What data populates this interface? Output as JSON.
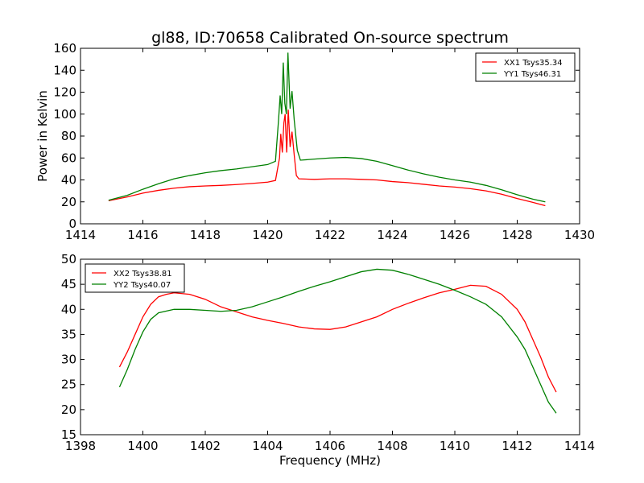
{
  "chart_data": [
    {
      "type": "line",
      "title": "gl88, ID:70658 Calibrated On-source spectrum",
      "xlabel": "",
      "ylabel": "Power in Kelvin",
      "xlim": [
        1414,
        1430
      ],
      "ylim": [
        0,
        160
      ],
      "xticks": [
        1414,
        1416,
        1418,
        1420,
        1422,
        1424,
        1426,
        1428,
        1430
      ],
      "yticks": [
        0,
        20,
        40,
        60,
        80,
        100,
        120,
        140,
        160
      ],
      "legend_position": "top-right",
      "grid": false,
      "series": [
        {
          "name": "XX1 Tsys35.34",
          "color": "#ff0000",
          "points": [
            [
              1414.9,
              21
            ],
            [
              1415.5,
              24.5
            ],
            [
              1416,
              28
            ],
            [
              1416.5,
              30.5
            ],
            [
              1417,
              32.5
            ],
            [
              1417.5,
              33.8
            ],
            [
              1418,
              34.5
            ],
            [
              1418.5,
              35
            ],
            [
              1419,
              35.8
            ],
            [
              1419.5,
              36.8
            ],
            [
              1420.0,
              38
            ],
            [
              1420.25,
              39.5
            ],
            [
              1420.38,
              60
            ],
            [
              1420.42,
              82
            ],
            [
              1420.47,
              65
            ],
            [
              1420.52,
              92
            ],
            [
              1420.56,
              100
            ],
            [
              1420.61,
              65
            ],
            [
              1420.66,
              104
            ],
            [
              1420.72,
              70
            ],
            [
              1420.78,
              84
            ],
            [
              1420.85,
              63
            ],
            [
              1420.92,
              44
            ],
            [
              1421.0,
              41
            ],
            [
              1421.5,
              40.5
            ],
            [
              1422,
              41
            ],
            [
              1422.5,
              41
            ],
            [
              1423,
              40.5
            ],
            [
              1423.5,
              40
            ],
            [
              1424,
              38.5
            ],
            [
              1424.5,
              37.5
            ],
            [
              1425,
              36
            ],
            [
              1425.5,
              34.5
            ],
            [
              1426,
              33.5
            ],
            [
              1426.5,
              32
            ],
            [
              1427,
              30
            ],
            [
              1427.5,
              27
            ],
            [
              1428,
              23
            ],
            [
              1428.5,
              19.5
            ],
            [
              1428.9,
              16.5
            ]
          ]
        },
        {
          "name": "YY1 Tsys46.31",
          "color": "#008000",
          "points": [
            [
              1414.9,
              21.5
            ],
            [
              1415.5,
              26
            ],
            [
              1416,
              31.5
            ],
            [
              1416.5,
              36.5
            ],
            [
              1417,
              41
            ],
            [
              1417.5,
              44
            ],
            [
              1418,
              46.5
            ],
            [
              1418.5,
              48.5
            ],
            [
              1419,
              50
            ],
            [
              1419.5,
              52
            ],
            [
              1420.0,
              54
            ],
            [
              1420.25,
              57
            ],
            [
              1420.35,
              95
            ],
            [
              1420.4,
              117
            ],
            [
              1420.45,
              100
            ],
            [
              1420.5,
              147
            ],
            [
              1420.55,
              110
            ],
            [
              1420.6,
              100
            ],
            [
              1420.65,
              156
            ],
            [
              1420.72,
              105
            ],
            [
              1420.78,
              121
            ],
            [
              1420.85,
              95
            ],
            [
              1420.95,
              67
            ],
            [
              1421.05,
              58
            ],
            [
              1421.5,
              59
            ],
            [
              1422,
              60
            ],
            [
              1422.5,
              60.5
            ],
            [
              1423,
              59.5
            ],
            [
              1423.5,
              57
            ],
            [
              1424,
              53
            ],
            [
              1424.5,
              49
            ],
            [
              1425,
              45.5
            ],
            [
              1425.5,
              42.5
            ],
            [
              1426,
              40
            ],
            [
              1426.5,
              38
            ],
            [
              1427,
              35
            ],
            [
              1427.5,
              31
            ],
            [
              1428,
              26.5
            ],
            [
              1428.5,
              22.5
            ],
            [
              1428.9,
              20
            ]
          ]
        }
      ]
    },
    {
      "type": "line",
      "title": "",
      "xlabel": "Frequency (MHz)",
      "ylabel": "",
      "xlim": [
        1398,
        1414
      ],
      "ylim": [
        15,
        50
      ],
      "xticks": [
        1398,
        1400,
        1402,
        1404,
        1406,
        1408,
        1410,
        1412,
        1414
      ],
      "yticks": [
        15,
        20,
        25,
        30,
        35,
        40,
        45,
        50
      ],
      "legend_position": "top-left",
      "grid": false,
      "series": [
        {
          "name": "XX2 Tsys38.81",
          "color": "#ff0000",
          "points": [
            [
              1399.25,
              28.5
            ],
            [
              1399.5,
              31.5
            ],
            [
              1399.75,
              35
            ],
            [
              1400,
              38.5
            ],
            [
              1400.25,
              41
            ],
            [
              1400.5,
              42.5
            ],
            [
              1400.75,
              43
            ],
            [
              1401,
              43.3
            ],
            [
              1401.5,
              43
            ],
            [
              1402,
              42
            ],
            [
              1402.5,
              40.5
            ],
            [
              1403,
              39.5
            ],
            [
              1403.5,
              38.5
            ],
            [
              1404,
              37.8
            ],
            [
              1404.5,
              37.2
            ],
            [
              1405,
              36.5
            ],
            [
              1405.5,
              36.1
            ],
            [
              1406,
              36
            ],
            [
              1406.5,
              36.5
            ],
            [
              1407,
              37.5
            ],
            [
              1407.5,
              38.5
            ],
            [
              1408,
              40
            ],
            [
              1408.5,
              41.2
            ],
            [
              1409,
              42.3
            ],
            [
              1409.5,
              43.3
            ],
            [
              1410,
              44
            ],
            [
              1410.5,
              44.8
            ],
            [
              1411,
              44.6
            ],
            [
              1411.5,
              43
            ],
            [
              1412,
              40
            ],
            [
              1412.25,
              37.5
            ],
            [
              1412.5,
              34
            ],
            [
              1412.75,
              30.5
            ],
            [
              1413,
              26.5
            ],
            [
              1413.25,
              23.5
            ]
          ]
        },
        {
          "name": "YY2 Tsys40.07",
          "color": "#008000",
          "points": [
            [
              1399.25,
              24.5
            ],
            [
              1399.5,
              28
            ],
            [
              1399.75,
              32
            ],
            [
              1400,
              35.5
            ],
            [
              1400.25,
              38
            ],
            [
              1400.5,
              39.3
            ],
            [
              1401,
              40
            ],
            [
              1401.5,
              40
            ],
            [
              1402,
              39.8
            ],
            [
              1402.5,
              39.6
            ],
            [
              1403,
              39.8
            ],
            [
              1403.5,
              40.5
            ],
            [
              1404,
              41.5
            ],
            [
              1404.5,
              42.5
            ],
            [
              1405,
              43.6
            ],
            [
              1405.5,
              44.6
            ],
            [
              1406,
              45.5
            ],
            [
              1406.5,
              46.5
            ],
            [
              1407,
              47.5
            ],
            [
              1407.5,
              48
            ],
            [
              1408,
              47.8
            ],
            [
              1408.5,
              47
            ],
            [
              1409,
              46
            ],
            [
              1409.5,
              45
            ],
            [
              1410,
              43.8
            ],
            [
              1410.5,
              42.5
            ],
            [
              1411,
              41
            ],
            [
              1411.5,
              38.5
            ],
            [
              1412,
              34.5
            ],
            [
              1412.25,
              32
            ],
            [
              1412.5,
              28.5
            ],
            [
              1412.75,
              25
            ],
            [
              1413,
              21.5
            ],
            [
              1413.25,
              19.3
            ]
          ]
        }
      ]
    }
  ]
}
